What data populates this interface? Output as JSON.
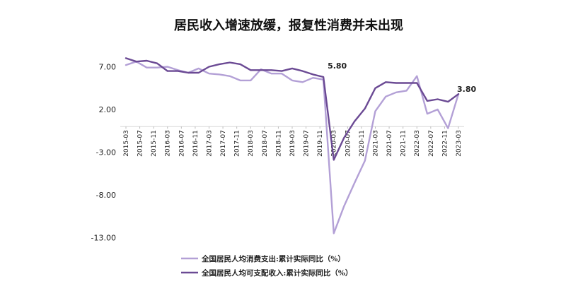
{
  "chart_data": {
    "type": "line",
    "title": "居民收入增速放缓，报复性消费并未出现",
    "xlabel": "",
    "ylabel": "",
    "ylim": [
      -13,
      9
    ],
    "yticks": [
      7,
      2,
      -3,
      -8,
      -13
    ],
    "ytick_labels": [
      "7.00",
      "2.00",
      "-3.00",
      "-8.00",
      "-13.00"
    ],
    "x_tick_labels": [
      "2015-03",
      "2015-07",
      "2015-11",
      "2016-03",
      "2016-07",
      "2016-11",
      "2017-03",
      "2017-07",
      "2017-11",
      "2018-03",
      "2018-07",
      "2018-11",
      "2019-03",
      "2019-07",
      "2019-11",
      "2020-03",
      "2020-07",
      "2020-11",
      "2021-03",
      "2021-07",
      "2021-11",
      "2022-03",
      "2022-07",
      "2022-11",
      "2023-03"
    ],
    "x": [
      "2015-03",
      "2015-06",
      "2015-09",
      "2015-12",
      "2016-03",
      "2016-06",
      "2016-09",
      "2016-12",
      "2017-03",
      "2017-06",
      "2017-09",
      "2017-12",
      "2018-03",
      "2018-06",
      "2018-09",
      "2018-12",
      "2019-03",
      "2019-06",
      "2019-09",
      "2019-12",
      "2020-03",
      "2020-06",
      "2020-09",
      "2020-12",
      "2021-03",
      "2021-06",
      "2021-09",
      "2021-12",
      "2022-03",
      "2022-06",
      "2022-09",
      "2022-12",
      "2023-03"
    ],
    "series": [
      {
        "name": "全国居民人均消费支出:累计实际同比（%）",
        "color": "#b3a0d6",
        "values": [
          7.2,
          7.6,
          6.9,
          6.9,
          7.0,
          6.6,
          6.3,
          6.8,
          6.2,
          6.1,
          5.9,
          5.4,
          5.4,
          6.7,
          6.2,
          6.2,
          5.4,
          5.2,
          5.7,
          5.5,
          -12.5,
          -9.3,
          -6.6,
          -4.0,
          1.8,
          3.5,
          4.0,
          4.2,
          5.9,
          1.5,
          2.0,
          -0.2,
          3.8
        ]
      },
      {
        "name": "全国居民人均可支配收入:累计实际同比（%）",
        "color": "#6b4a94",
        "values": [
          8.0,
          7.6,
          7.7,
          7.4,
          6.5,
          6.5,
          6.3,
          6.3,
          7.0,
          7.3,
          7.5,
          7.3,
          6.6,
          6.6,
          6.6,
          6.5,
          6.8,
          6.5,
          6.1,
          5.8,
          -3.9,
          -1.3,
          0.6,
          2.1,
          4.5,
          5.2,
          5.1,
          5.1,
          5.1,
          3.0,
          3.2,
          2.9,
          3.8
        ]
      }
    ],
    "annotations": [
      {
        "text": "5.80",
        "x": "2019-12",
        "y": 5.8
      },
      {
        "text": "3.80",
        "x": "2023-03",
        "y": 3.8
      }
    ],
    "grid": false,
    "legend_position": "bottom"
  }
}
